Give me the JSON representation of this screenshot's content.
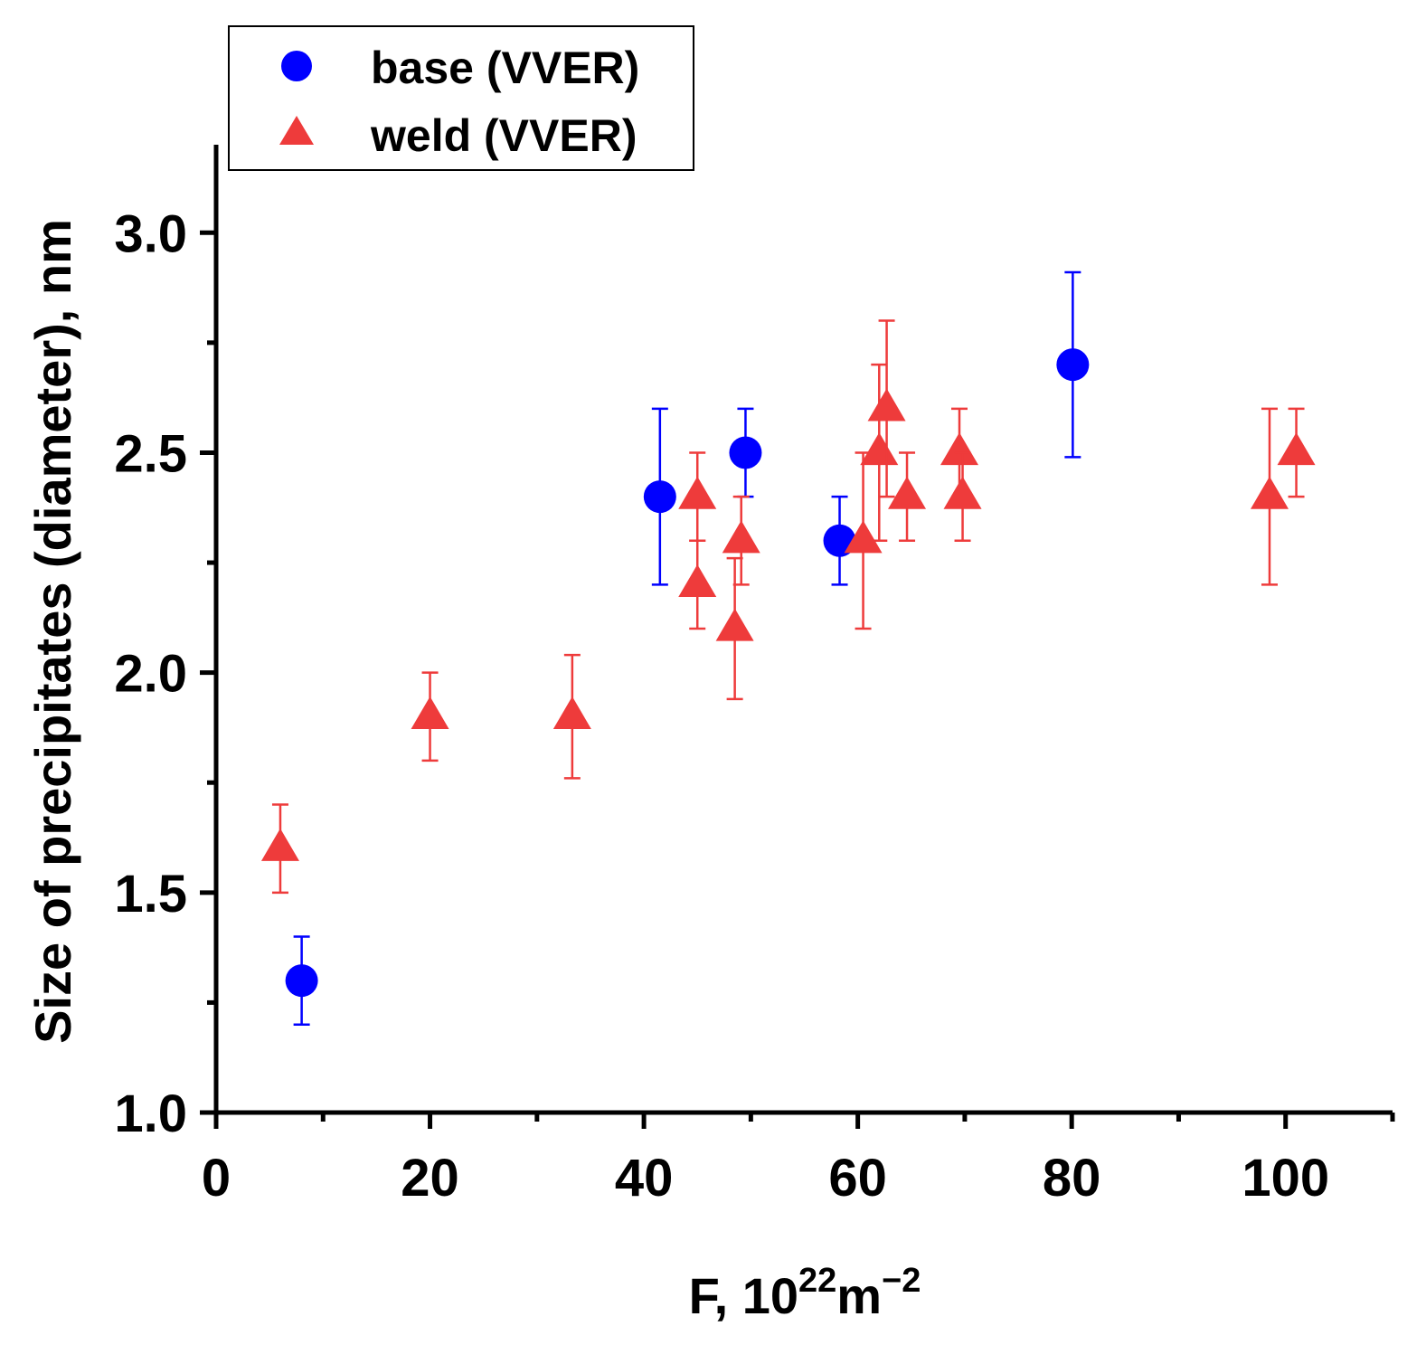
{
  "chart_data": {
    "type": "scatter",
    "xlabel": "F, 10",
    "xlabel_sup1": "22",
    "xlabel_mid": "m",
    "xlabel_sup2": "−2",
    "ylabel": "Size of precipitates (diameter), nm",
    "xlim": [
      0,
      110
    ],
    "ylim": [
      1.0,
      3.2
    ],
    "x_ticks": [
      0,
      20,
      40,
      60,
      80,
      100
    ],
    "x_tick_labels": [
      "0",
      "20",
      "40",
      "60",
      "80",
      "100"
    ],
    "y_ticks": [
      1.0,
      1.5,
      2.0,
      2.5,
      3.0
    ],
    "y_tick_labels": [
      "1.0",
      "1.5",
      "2.0",
      "2.5",
      "3.0"
    ],
    "grid": false,
    "legend_position": "top-left",
    "series": [
      {
        "name": "base (VVER)",
        "marker": "circle",
        "color": "#0000ff",
        "points": [
          {
            "x": 8,
            "y": 1.3,
            "err_low": 1.2,
            "err_high": 1.4
          },
          {
            "x": 41.5,
            "y": 2.4,
            "err_low": 2.2,
            "err_high": 2.6
          },
          {
            "x": 49.5,
            "y": 2.5,
            "err_low": 2.4,
            "err_high": 2.6
          },
          {
            "x": 58.3,
            "y": 2.3,
            "err_low": 2.2,
            "err_high": 2.4
          },
          {
            "x": 80.1,
            "y": 2.7,
            "err_low": 2.49,
            "err_high": 2.91
          }
        ]
      },
      {
        "name": "weld (VVER)",
        "marker": "triangle",
        "color": "#ee3b3b",
        "points": [
          {
            "x": 6,
            "y": 1.6,
            "err_low": 1.5,
            "err_high": 1.7
          },
          {
            "x": 20,
            "y": 1.9,
            "err_low": 1.8,
            "err_high": 2.0
          },
          {
            "x": 33.3,
            "y": 1.9,
            "err_low": 1.76,
            "err_high": 2.04
          },
          {
            "x": 45,
            "y": 2.4,
            "err_low": 2.3,
            "err_high": 2.5
          },
          {
            "x": 45,
            "y": 2.2,
            "err_low": 2.1,
            "err_high": 2.3
          },
          {
            "x": 48.5,
            "y": 2.1,
            "err_low": 1.94,
            "err_high": 2.26
          },
          {
            "x": 49.1,
            "y": 2.3,
            "err_low": 2.2,
            "err_high": 2.4
          },
          {
            "x": 60.5,
            "y": 2.3,
            "err_low": 2.1,
            "err_high": 2.5
          },
          {
            "x": 62,
            "y": 2.5,
            "err_low": 2.3,
            "err_high": 2.7
          },
          {
            "x": 62.7,
            "y": 2.6,
            "err_low": 2.4,
            "err_high": 2.8
          },
          {
            "x": 64.6,
            "y": 2.4,
            "err_low": 2.3,
            "err_high": 2.5
          },
          {
            "x": 69.5,
            "y": 2.5,
            "err_low": 2.4,
            "err_high": 2.6
          },
          {
            "x": 69.8,
            "y": 2.4,
            "err_low": 2.3,
            "err_high": 2.5
          },
          {
            "x": 98.5,
            "y": 2.4,
            "err_low": 2.2,
            "err_high": 2.6
          },
          {
            "x": 101,
            "y": 2.5,
            "err_low": 2.4,
            "err_high": 2.6
          }
        ]
      }
    ]
  }
}
